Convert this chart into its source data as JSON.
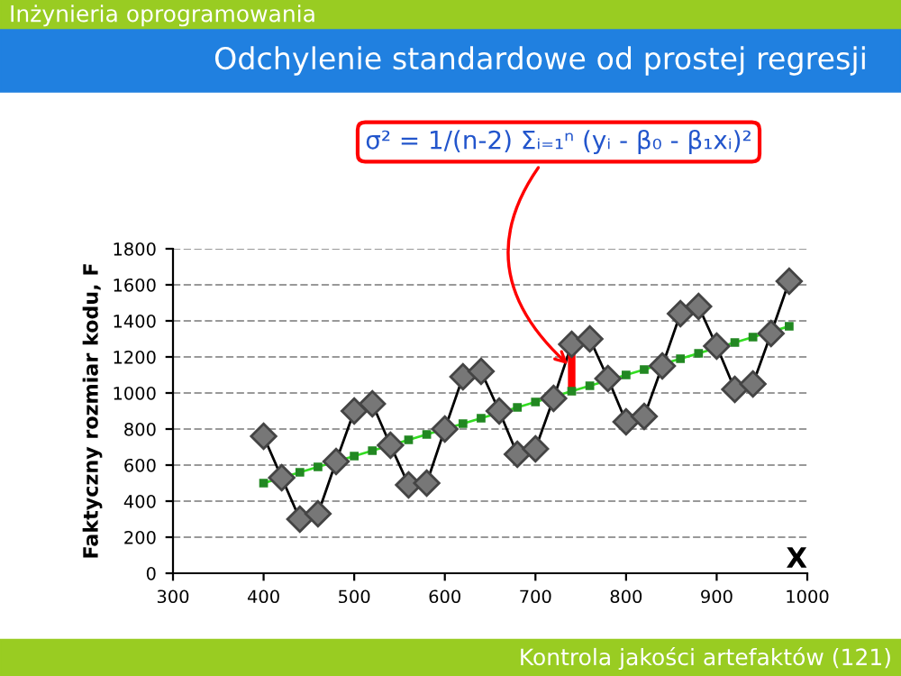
{
  "chart_data": {
    "type": "line",
    "title": "Odchylenie standardowe od prostej regresji",
    "xlabel": "X",
    "ylabel": "Faktyczny rozmiar kodu, F",
    "annotations": [
      "Inżynieria oprogramowania",
      "Kontrola jakości artefaktów (121)",
      {
        "text": "σ² = 1/(n-2) Σᵢ₌₁ⁿ (yᵢ - β₀ - β₁xᵢ)²",
        "x": 740,
        "y": 1140
      }
    ],
    "series": [
      {
        "color": "#000000",
        "marker": "diamond",
        "x": [
          400,
          420,
          440,
          460,
          480,
          500,
          520,
          540,
          560,
          580,
          600,
          620,
          640,
          660,
          680,
          700,
          720,
          740,
          760,
          780,
          800,
          820,
          840,
          860,
          880,
          900,
          920,
          940,
          960,
          980
        ],
        "values": [
          760,
          530,
          300,
          330,
          620,
          900,
          940,
          710,
          490,
          500,
          800,
          1090,
          1120,
          900,
          660,
          690,
          970,
          1270,
          1300,
          1080,
          840,
          870,
          1150,
          1440,
          1480,
          1260,
          1020,
          1050,
          1330,
          1620
        ]
      },
      {
        "color": "#33dd22",
        "marker": "square",
        "x": [
          400,
          420,
          440,
          460,
          480,
          500,
          520,
          540,
          560,
          580,
          600,
          620,
          640,
          660,
          680,
          700,
          720,
          740,
          760,
          780,
          800,
          820,
          840,
          860,
          880,
          900,
          920,
          940,
          960,
          980
        ],
        "values": [
          500,
          530,
          560,
          590,
          620,
          650,
          680,
          710,
          740,
          770,
          800,
          830,
          860,
          890,
          920,
          950,
          980,
          1010,
          1040,
          1070,
          1100,
          1130,
          1160,
          1190,
          1220,
          1250,
          1280,
          1310,
          1340,
          1370
        ]
      },
      {
        "color": "#ff0000",
        "marker": "none",
        "x": [
          740,
          740
        ],
        "values": [
          1010,
          1270
        ]
      }
    ],
    "xlim": [
      300,
      1000
    ],
    "xticks": [
      300,
      400,
      500,
      600,
      700,
      800,
      900,
      1000
    ],
    "ylim": [
      0,
      1800
    ],
    "yticks": [
      0,
      200,
      400,
      600,
      800,
      1000,
      1200,
      1400,
      1600,
      1800
    ],
    "grid": "y",
    "legend": false
  }
}
